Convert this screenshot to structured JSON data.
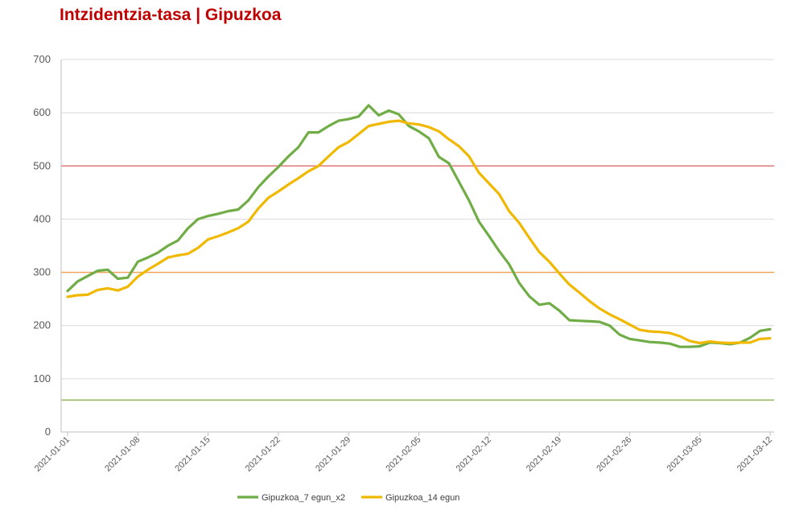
{
  "title": "Intzidentzia-tasa | Gipuzkoa",
  "chart_data": {
    "type": "line",
    "title": "Intzidentzia-tasa | Gipuzkoa",
    "xlabel": "",
    "ylabel": "",
    "ylim": [
      0,
      700
    ],
    "yticks": [
      0,
      100,
      200,
      300,
      400,
      500,
      600,
      700
    ],
    "xlim": [
      "2021-01-01",
      "2021-03-12"
    ],
    "xticks": [
      "2021-01-01",
      "2021-01-08",
      "2021-01-15",
      "2021-01-22",
      "2021-01-29",
      "2021-02-05",
      "2021-02-12",
      "2021-02-19",
      "2021-02-26",
      "2021-03-05",
      "2021-03-12"
    ],
    "grid": "horizontal",
    "legend": "bottom",
    "reference_lines": [
      {
        "y": 500,
        "color": "#e06060"
      },
      {
        "y": 300,
        "color": "#f0a050"
      },
      {
        "y": 60,
        "color": "#8cb050"
      }
    ],
    "x": [
      "2021-01-01",
      "2021-01-02",
      "2021-01-03",
      "2021-01-04",
      "2021-01-05",
      "2021-01-06",
      "2021-01-07",
      "2021-01-08",
      "2021-01-09",
      "2021-01-10",
      "2021-01-11",
      "2021-01-12",
      "2021-01-13",
      "2021-01-14",
      "2021-01-15",
      "2021-01-16",
      "2021-01-17",
      "2021-01-18",
      "2021-01-19",
      "2021-01-20",
      "2021-01-21",
      "2021-01-22",
      "2021-01-23",
      "2021-01-24",
      "2021-01-25",
      "2021-01-26",
      "2021-01-27",
      "2021-01-28",
      "2021-01-29",
      "2021-01-30",
      "2021-01-31",
      "2021-02-01",
      "2021-02-02",
      "2021-02-03",
      "2021-02-04",
      "2021-02-05",
      "2021-02-06",
      "2021-02-07",
      "2021-02-08",
      "2021-02-09",
      "2021-02-10",
      "2021-02-11",
      "2021-02-12",
      "2021-02-13",
      "2021-02-14",
      "2021-02-15",
      "2021-02-16",
      "2021-02-17",
      "2021-02-18",
      "2021-02-19",
      "2021-02-20",
      "2021-02-21",
      "2021-02-22",
      "2021-02-23",
      "2021-02-24",
      "2021-02-25",
      "2021-02-26",
      "2021-02-27",
      "2021-02-28",
      "2021-03-01",
      "2021-03-02",
      "2021-03-03",
      "2021-03-04",
      "2021-03-05",
      "2021-03-06",
      "2021-03-07",
      "2021-03-08",
      "2021-03-09",
      "2021-03-10",
      "2021-03-11",
      "2021-03-12"
    ],
    "series": [
      {
        "name": "Gipuzkoa_7 egun_x2",
        "color": "#70ad47",
        "values": [
          265,
          283,
          293,
          303,
          305,
          288,
          290,
          320,
          328,
          337,
          350,
          360,
          383,
          400,
          406,
          410,
          415,
          418,
          435,
          460,
          480,
          498,
          518,
          535,
          563,
          563,
          575,
          585,
          588,
          593,
          614,
          595,
          604,
          597,
          575,
          565,
          552,
          517,
          505,
          470,
          435,
          395,
          368,
          340,
          315,
          280,
          255,
          239,
          242,
          228,
          210,
          209,
          208,
          207,
          200,
          183,
          175,
          172,
          169,
          168,
          166,
          160,
          160,
          161,
          168,
          167,
          165,
          168,
          177,
          190,
          193
        ]
      },
      {
        "name": "Gipuzkoa_14 egun",
        "color": "#f0b800",
        "values": [
          254,
          257,
          258,
          267,
          270,
          266,
          273,
          292,
          305,
          316,
          328,
          332,
          335,
          346,
          362,
          368,
          375,
          383,
          395,
          420,
          440,
          452,
          465,
          477,
          490,
          500,
          518,
          535,
          545,
          560,
          575,
          579,
          583,
          585,
          580,
          578,
          573,
          565,
          550,
          537,
          518,
          487,
          467,
          447,
          415,
          393,
          365,
          338,
          320,
          298,
          277,
          262,
          246,
          232,
          221,
          212,
          202,
          192,
          189,
          188,
          186,
          180,
          171,
          167,
          170,
          168,
          167,
          168,
          168,
          175,
          176
        ]
      }
    ]
  },
  "colors": {
    "title": "#c00000",
    "grid": "#d9d9d9",
    "axis": "#bfbfbf",
    "tick_text": "#595959"
  }
}
